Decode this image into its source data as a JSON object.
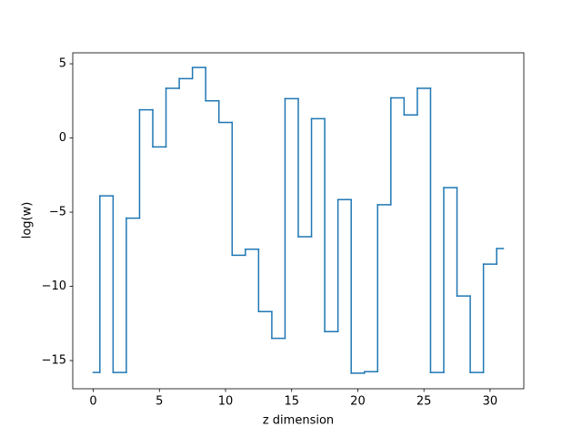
{
  "chart_data": {
    "type": "step",
    "step_where": "mid",
    "x_label": "z dimension",
    "y_label": "log(w)",
    "x": [
      0,
      1,
      2,
      3,
      4,
      5,
      6,
      7,
      8,
      9,
      10,
      11,
      12,
      13,
      14,
      15,
      16,
      17,
      18,
      19,
      20,
      21,
      22,
      23,
      24,
      25,
      26,
      27,
      28,
      29,
      30,
      31
    ],
    "series": [
      {
        "color": "#1f77b4",
        "values": [
          -15.8,
          -3.9,
          -15.8,
          -5.4,
          1.9,
          -0.6,
          3.35,
          4.0,
          4.75,
          2.5,
          1.05,
          -7.9,
          -7.5,
          -11.7,
          -13.5,
          2.65,
          -6.65,
          1.3,
          -13.05,
          -4.15,
          -15.85,
          -15.75,
          -4.5,
          2.7,
          1.55,
          3.35,
          -15.8,
          -3.35,
          -10.65,
          -15.8,
          -8.5,
          -7.45
        ]
      }
    ],
    "xlim": [
      -1.55,
      32.55
    ],
    "ylim": [
      -16.9,
      5.74
    ],
    "xticks": [
      0,
      5,
      10,
      15,
      20,
      25,
      30
    ],
    "yticks": [
      {
        "value": -15,
        "label": "−15"
      },
      {
        "value": -10,
        "label": "−10"
      },
      {
        "value": -5,
        "label": "−5"
      },
      0,
      5
    ]
  }
}
